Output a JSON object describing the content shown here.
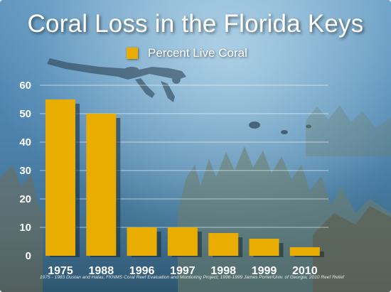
{
  "slide": {
    "title": "Coral Loss in the Florida Keys",
    "source_note": "1975 - 1983 Dustan and Halas; FKNMS Coral Reef Evaluation and Monitoring Project; 1996-1999 James Porter/Univ. of Georgia; 2010 Reef Relief"
  },
  "colors": {
    "bar": "#e8ad00",
    "bar_shadow": "#1a2630",
    "gridline": "#ffffff",
    "text": "#ffffff"
  },
  "chart_data": {
    "type": "bar",
    "title": "Coral Loss in the Florida Keys",
    "xlabel": "",
    "ylabel": "",
    "categories": [
      "1975",
      "1988",
      "1996",
      "1997",
      "1998",
      "1999",
      "2010"
    ],
    "series": [
      {
        "name": "Percent Live Coral",
        "values": [
          55,
          50,
          10,
          10,
          8,
          6,
          3
        ]
      }
    ],
    "ylim": [
      0,
      60
    ],
    "yticks": [
      0,
      10,
      20,
      30,
      40,
      50,
      60
    ],
    "grid": true,
    "legend": "top-center"
  }
}
